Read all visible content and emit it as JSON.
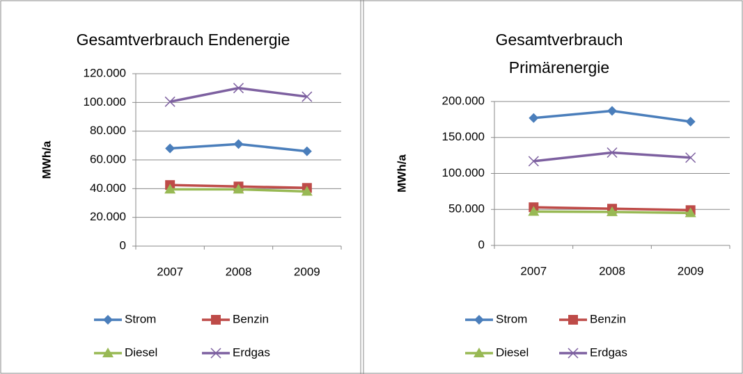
{
  "chart_data": [
    {
      "type": "line",
      "title": "Gesamtverbrauch Endenergie",
      "y_label": "MWh/a",
      "categories": [
        "2007",
        "2008",
        "2009"
      ],
      "ylim": [
        0,
        120000
      ],
      "yticks": [
        0,
        {
          "value": 20000,
          "label": "20.000"
        },
        {
          "value": 40000,
          "label": "40.000"
        },
        {
          "value": 60000,
          "label": "60.000"
        },
        {
          "value": 80000,
          "label": "80.000"
        },
        {
          "value": 100000,
          "label": "100.000"
        },
        {
          "value": 120000,
          "label": "120.000"
        }
      ],
      "grid": true,
      "series": [
        {
          "name": "Strom",
          "color": "#4a7ebb",
          "marker": "diamond",
          "values": [
            68000,
            71000,
            66000
          ]
        },
        {
          "name": "Benzin",
          "color": "#be4b48",
          "marker": "square",
          "values": [
            42500,
            41500,
            40500
          ]
        },
        {
          "name": "Diesel",
          "color": "#98b954",
          "marker": "triangle",
          "values": [
            39500,
            39500,
            38000
          ]
        },
        {
          "name": "Erdgas",
          "color": "#7d60a0",
          "marker": "x",
          "values": [
            100500,
            110000,
            104000
          ]
        }
      ]
    },
    {
      "type": "line",
      "title": "Gesamtverbrauch Primärenergie",
      "y_label": "MWh/a",
      "categories": [
        "2007",
        "2008",
        "2009"
      ],
      "ylim": [
        0,
        200000
      ],
      "yticks": [
        0,
        {
          "value": 50000,
          "label": "50.000"
        },
        {
          "value": 100000,
          "label": "100.000"
        },
        {
          "value": 150000,
          "label": "150.000"
        },
        {
          "value": 200000,
          "label": "200.000"
        }
      ],
      "grid": true,
      "series": [
        {
          "name": "Strom",
          "color": "#4a7ebb",
          "marker": "diamond",
          "values": [
            177000,
            187000,
            172000
          ]
        },
        {
          "name": "Benzin",
          "color": "#be4b48",
          "marker": "square",
          "values": [
            53000,
            51000,
            49000
          ]
        },
        {
          "name": "Diesel",
          "color": "#98b954",
          "marker": "triangle",
          "values": [
            47000,
            46500,
            45000
          ]
        },
        {
          "name": "Erdgas",
          "color": "#7d60a0",
          "marker": "x",
          "values": [
            117000,
            129000,
            122000
          ]
        }
      ]
    }
  ]
}
